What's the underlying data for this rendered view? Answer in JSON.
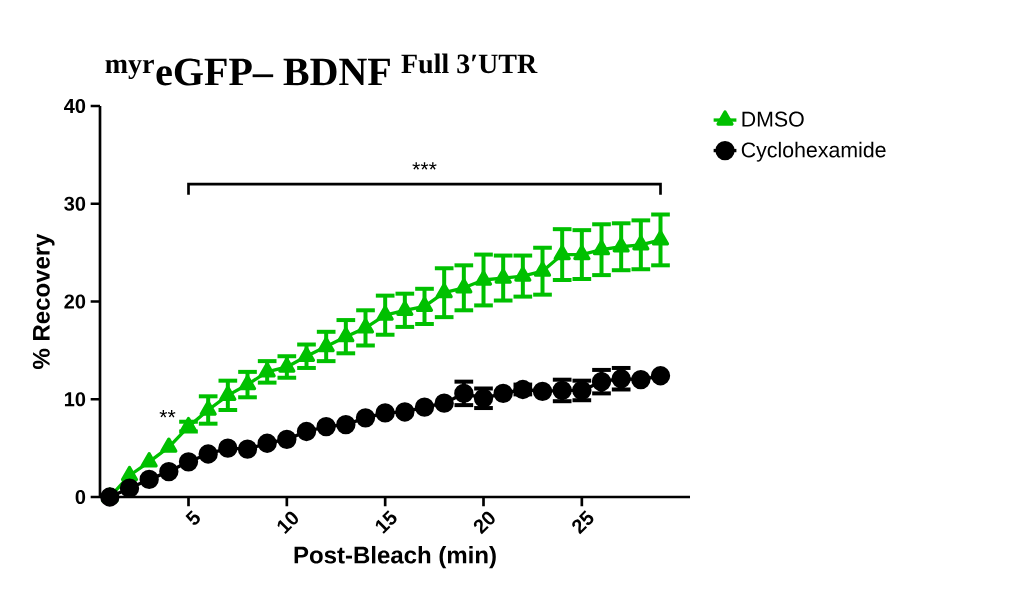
{
  "chart_data": {
    "type": "line",
    "title": "^{\\text{myr}}\\text{eGFP– BDNF}\\;^{\\text{Full 3′UTR}}",
    "xlabel": "Post-Bleach (min)",
    "ylabel": "% Recovery",
    "x": [
      1,
      2,
      3,
      4,
      5,
      6,
      7,
      8,
      9,
      10,
      11,
      12,
      13,
      14,
      15,
      16,
      17,
      18,
      19,
      20,
      21,
      22,
      23,
      24,
      25,
      26,
      27,
      28,
      29
    ],
    "series": [
      {
        "name": "DMSO",
        "color": "#00c000",
        "marker": "triangle",
        "values": [
          0,
          2.2,
          3.6,
          5.1,
          7.2,
          8.9,
          10.4,
          11.5,
          12.8,
          13.3,
          14.4,
          15.4,
          16.4,
          17.3,
          18.6,
          19.1,
          19.5,
          20.9,
          21.4,
          22.2,
          22.4,
          22.6,
          23.1,
          24.8,
          24.8,
          25.3,
          25.6,
          25.8,
          26.3
        ],
        "errors": [
          null,
          null,
          null,
          null,
          0.5,
          1.4,
          1.5,
          1.3,
          1.1,
          1.1,
          1.2,
          1.5,
          1.7,
          1.8,
          2.0,
          1.7,
          1.8,
          2.5,
          2.3,
          2.6,
          2.3,
          2.1,
          2.4,
          2.6,
          2.5,
          2.6,
          2.4,
          2.5,
          2.6
        ]
      },
      {
        "name": "Cyclohexamide",
        "color": "#000000",
        "marker": "circle",
        "values": [
          0,
          0.9,
          1.8,
          2.6,
          3.6,
          4.4,
          5.0,
          4.9,
          5.5,
          5.9,
          6.7,
          7.2,
          7.4,
          8.1,
          8.6,
          8.7,
          9.2,
          9.6,
          10.6,
          10.1,
          10.6,
          11.0,
          10.8,
          10.9,
          10.9,
          11.8,
          12.1,
          12.0,
          12.4
        ],
        "errors": [
          null,
          null,
          null,
          null,
          null,
          null,
          null,
          null,
          null,
          null,
          null,
          null,
          null,
          null,
          null,
          null,
          null,
          null,
          1.2,
          1.0,
          null,
          0.5,
          null,
          1.1,
          1.0,
          1.2,
          1.1,
          null,
          null
        ]
      }
    ],
    "xlim": [
      0.5,
      30.5
    ],
    "ylim": [
      0,
      40
    ],
    "xticks": [
      5,
      10,
      15,
      20,
      25
    ],
    "yticks": [
      0,
      10,
      20,
      30,
      40
    ],
    "grid": false,
    "legend": "top right",
    "line_style": "solid",
    "annotations": [
      "**",
      "***"
    ]
  }
}
